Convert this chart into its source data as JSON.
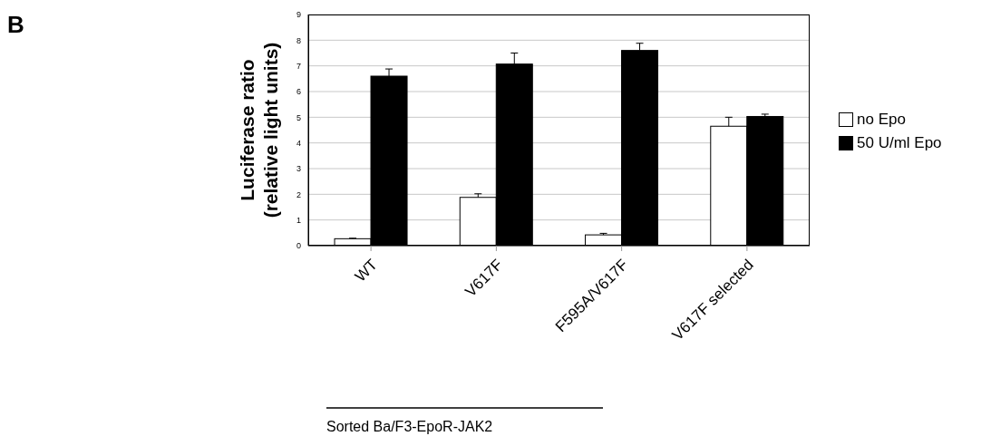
{
  "chart_data": {
    "type": "bar",
    "ylabel": "Luciferase ratio\n(relative light units)",
    "categories": [
      "WT",
      "V617F",
      "F595A/V617F",
      "V617F selected"
    ],
    "series": [
      {
        "name": "no Epo",
        "color": "#ffffff",
        "values": [
          0.27,
          1.88,
          0.42,
          4.65
        ],
        "errors": [
          [
            0.27,
            0.29
          ],
          [
            1.88,
            2.02
          ],
          [
            0.42,
            0.48
          ],
          [
            4.65,
            5.0
          ]
        ]
      },
      {
        "name": "50 U/ml Epo",
        "color": "#000000",
        "values": [
          6.6,
          7.07,
          7.6,
          5.03
        ],
        "errors": [
          [
            6.6,
            6.88
          ],
          [
            7.07,
            7.5
          ],
          [
            7.6,
            7.88
          ],
          [
            5.03,
            5.12
          ]
        ]
      }
    ],
    "ylim": [
      0,
      9
    ],
    "yticks": [
      0,
      1,
      2,
      3,
      4,
      5,
      6,
      7,
      8,
      9
    ],
    "grid": "y",
    "legend": "right",
    "annotations": [
      "B",
      "Sorted Ba/F3-EpoR-JAK2"
    ]
  }
}
